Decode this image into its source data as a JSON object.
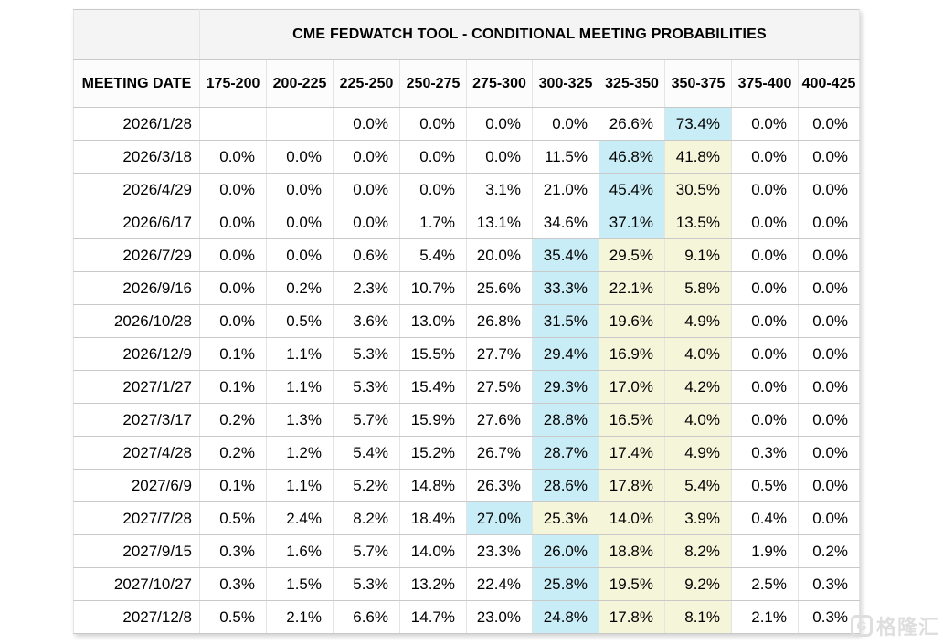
{
  "chart_data": {
    "type": "table",
    "title": "CME FEDWATCH TOOL - CONDITIONAL MEETING PROBABILITIES",
    "columns": [
      "MEETING DATE",
      "175-200",
      "200-225",
      "225-250",
      "250-275",
      "275-300",
      "300-325",
      "325-350",
      "350-375",
      "375-400",
      "400-425"
    ],
    "rows": [
      {
        "date": "2026/1/28",
        "values": [
          "",
          "",
          "0.0%",
          "0.0%",
          "0.0%",
          "0.0%",
          "26.6%",
          "73.4%",
          "0.0%",
          "0.0%"
        ],
        "highlights": [
          "",
          "",
          "",
          "",
          "",
          "",
          "",
          "max",
          "",
          ""
        ]
      },
      {
        "date": "2026/3/18",
        "values": [
          "0.0%",
          "0.0%",
          "0.0%",
          "0.0%",
          "0.0%",
          "11.5%",
          "46.8%",
          "41.8%",
          "0.0%",
          "0.0%"
        ],
        "highlights": [
          "",
          "",
          "",
          "",
          "",
          "",
          "max",
          "alt",
          "",
          ""
        ]
      },
      {
        "date": "2026/4/29",
        "values": [
          "0.0%",
          "0.0%",
          "0.0%",
          "0.0%",
          "3.1%",
          "21.0%",
          "45.4%",
          "30.5%",
          "0.0%",
          "0.0%"
        ],
        "highlights": [
          "",
          "",
          "",
          "",
          "",
          "",
          "max",
          "alt",
          "",
          ""
        ]
      },
      {
        "date": "2026/6/17",
        "values": [
          "0.0%",
          "0.0%",
          "0.0%",
          "1.7%",
          "13.1%",
          "34.6%",
          "37.1%",
          "13.5%",
          "0.0%",
          "0.0%"
        ],
        "highlights": [
          "",
          "",
          "",
          "",
          "",
          "",
          "max",
          "alt",
          "",
          ""
        ]
      },
      {
        "date": "2026/7/29",
        "values": [
          "0.0%",
          "0.0%",
          "0.6%",
          "5.4%",
          "20.0%",
          "35.4%",
          "29.5%",
          "9.1%",
          "0.0%",
          "0.0%"
        ],
        "highlights": [
          "",
          "",
          "",
          "",
          "",
          "max",
          "alt",
          "alt",
          "",
          ""
        ]
      },
      {
        "date": "2026/9/16",
        "values": [
          "0.0%",
          "0.2%",
          "2.3%",
          "10.7%",
          "25.6%",
          "33.3%",
          "22.1%",
          "5.8%",
          "0.0%",
          "0.0%"
        ],
        "highlights": [
          "",
          "",
          "",
          "",
          "",
          "max",
          "alt",
          "alt",
          "",
          ""
        ]
      },
      {
        "date": "2026/10/28",
        "values": [
          "0.0%",
          "0.5%",
          "3.6%",
          "13.0%",
          "26.8%",
          "31.5%",
          "19.6%",
          "4.9%",
          "0.0%",
          "0.0%"
        ],
        "highlights": [
          "",
          "",
          "",
          "",
          "",
          "max",
          "alt",
          "alt",
          "",
          ""
        ]
      },
      {
        "date": "2026/12/9",
        "values": [
          "0.1%",
          "1.1%",
          "5.3%",
          "15.5%",
          "27.7%",
          "29.4%",
          "16.9%",
          "4.0%",
          "0.0%",
          "0.0%"
        ],
        "highlights": [
          "",
          "",
          "",
          "",
          "",
          "max",
          "alt",
          "alt",
          "",
          ""
        ]
      },
      {
        "date": "2027/1/27",
        "values": [
          "0.1%",
          "1.1%",
          "5.3%",
          "15.4%",
          "27.5%",
          "29.3%",
          "17.0%",
          "4.2%",
          "0.0%",
          "0.0%"
        ],
        "highlights": [
          "",
          "",
          "",
          "",
          "",
          "max",
          "alt",
          "alt",
          "",
          ""
        ]
      },
      {
        "date": "2027/3/17",
        "values": [
          "0.2%",
          "1.3%",
          "5.7%",
          "15.9%",
          "27.6%",
          "28.8%",
          "16.5%",
          "4.0%",
          "0.0%",
          "0.0%"
        ],
        "highlights": [
          "",
          "",
          "",
          "",
          "",
          "max",
          "alt",
          "alt",
          "",
          ""
        ]
      },
      {
        "date": "2027/4/28",
        "values": [
          "0.2%",
          "1.2%",
          "5.4%",
          "15.2%",
          "26.7%",
          "28.7%",
          "17.4%",
          "4.9%",
          "0.3%",
          "0.0%"
        ],
        "highlights": [
          "",
          "",
          "",
          "",
          "",
          "max",
          "alt",
          "alt",
          "",
          ""
        ]
      },
      {
        "date": "2027/6/9",
        "values": [
          "0.1%",
          "1.1%",
          "5.2%",
          "14.8%",
          "26.3%",
          "28.6%",
          "17.8%",
          "5.4%",
          "0.5%",
          "0.0%"
        ],
        "highlights": [
          "",
          "",
          "",
          "",
          "",
          "max",
          "alt",
          "alt",
          "",
          ""
        ]
      },
      {
        "date": "2027/7/28",
        "values": [
          "0.5%",
          "2.4%",
          "8.2%",
          "18.4%",
          "27.0%",
          "25.3%",
          "14.0%",
          "3.9%",
          "0.4%",
          "0.0%"
        ],
        "highlights": [
          "",
          "",
          "",
          "",
          "max",
          "alt",
          "alt",
          "alt",
          "",
          ""
        ]
      },
      {
        "date": "2027/9/15",
        "values": [
          "0.3%",
          "1.6%",
          "5.7%",
          "14.0%",
          "23.3%",
          "26.0%",
          "18.8%",
          "8.2%",
          "1.9%",
          "0.2%"
        ],
        "highlights": [
          "",
          "",
          "",
          "",
          "",
          "max",
          "alt",
          "alt",
          "",
          ""
        ]
      },
      {
        "date": "2027/10/27",
        "values": [
          "0.3%",
          "1.5%",
          "5.3%",
          "13.2%",
          "22.4%",
          "25.8%",
          "19.5%",
          "9.2%",
          "2.5%",
          "0.3%"
        ],
        "highlights": [
          "",
          "",
          "",
          "",
          "",
          "max",
          "alt",
          "alt",
          "",
          ""
        ]
      },
      {
        "date": "2027/12/8",
        "values": [
          "0.5%",
          "2.1%",
          "6.6%",
          "14.7%",
          "23.0%",
          "24.8%",
          "17.8%",
          "8.1%",
          "2.1%",
          "0.3%"
        ],
        "highlights": [
          "",
          "",
          "",
          "",
          "",
          "max",
          "alt",
          "alt",
          "",
          ""
        ]
      }
    ],
    "layout_hints": {
      "grid": true,
      "highlight_legend": {
        "max": "cyan cell = highest probability in row",
        "alt": "pale-yellow cells = ranges above the row maximum"
      }
    },
    "colors": {
      "highlight_max": "#C9EDF6",
      "highlight_adjacent": "#F5F5DA",
      "title_band_bg": "#F4F4F4",
      "grid_line": "#C9C9C9"
    }
  },
  "watermark": {
    "logo_letter": "G",
    "text": "格隆汇"
  }
}
